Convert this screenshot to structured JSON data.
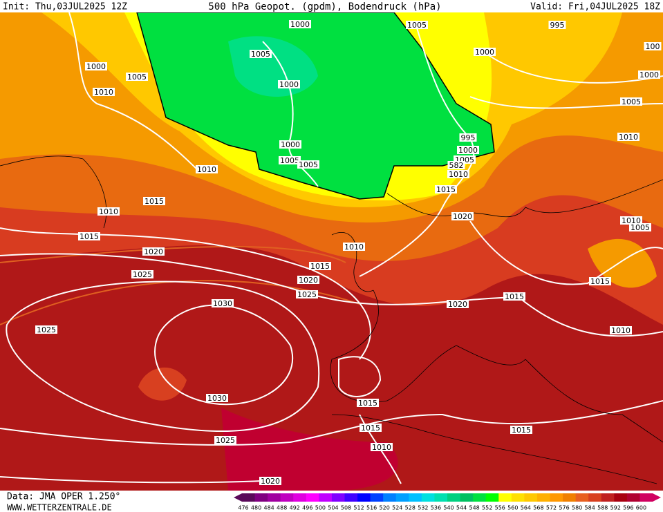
{
  "header": {
    "init": "Init: Thu,03JUL2025 12Z",
    "title": "500 hPa Geopot. (gpdm), Bodendruck (hPa)",
    "valid": "Valid: Fri,04JUL2025 18Z"
  },
  "isobar_labels": [
    "1000",
    "1005",
    "995",
    "100",
    "1000",
    "1005",
    "1000",
    "1005",
    "1000",
    "1010",
    "1000",
    "1005",
    "995",
    "1010",
    "1000",
    "1000",
    "1005",
    "1005",
    "1005",
    "582",
    "1010",
    "1010",
    "1015",
    "1010",
    "1015",
    "1020",
    "1010",
    "1005",
    "1015",
    "1010",
    "1020",
    "1015",
    "1025",
    "1020",
    "1015",
    "1025",
    "1015",
    "1030",
    "1020",
    "1025",
    "1010",
    "1030",
    "1015",
    "1015",
    "1015",
    "1025",
    "1010",
    "1020"
  ],
  "footer": {
    "data": "Data: JMA OPER 1.250°",
    "site": "WWW.WETTERZENTRALE.DE"
  },
  "colorbar": {
    "labels": [
      476,
      480,
      484,
      488,
      492,
      496,
      500,
      504,
      508,
      512,
      516,
      520,
      524,
      528,
      532,
      536,
      540,
      544,
      548,
      552,
      556,
      560,
      564,
      568,
      572,
      576,
      580,
      584,
      588,
      592,
      596,
      600
    ],
    "colors": [
      "#5a0a5a",
      "#800080",
      "#a000a0",
      "#c000c0",
      "#e000e0",
      "#ff00ff",
      "#c000ff",
      "#8000ff",
      "#4000ff",
      "#0000ff",
      "#0040ff",
      "#0080ff",
      "#00a0ff",
      "#00c0ff",
      "#00e0e0",
      "#00e0b0",
      "#00d080",
      "#00c060",
      "#00e040",
      "#00ff00",
      "#ffff00",
      "#ffe000",
      "#ffc800",
      "#ffb000",
      "#ff9800",
      "#f08000",
      "#e86020",
      "#d84020",
      "#c02020",
      "#a80010",
      "#b00030",
      "#d00060"
    ]
  }
}
